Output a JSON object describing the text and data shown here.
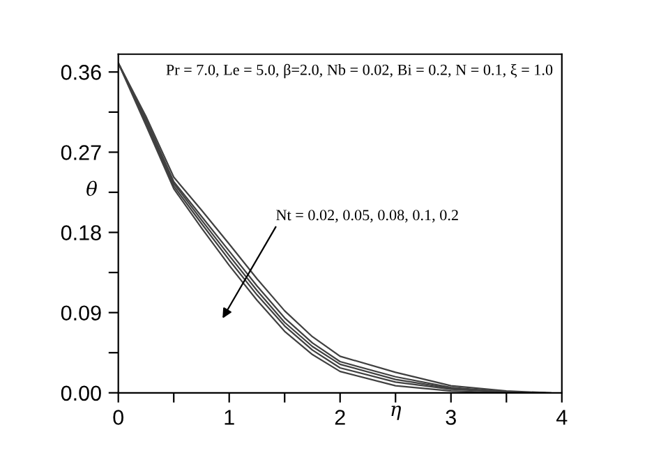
{
  "chart_data": {
    "type": "line",
    "xlabel": "η",
    "ylabel": "θ",
    "series": [
      {
        "color": "#404040",
        "x": [
          0,
          0.25,
          0.5,
          0.75,
          1,
          1.25,
          1.5,
          1.75,
          2,
          2.5,
          3,
          3.5,
          3.9
        ],
        "values": [
          0.37,
          0.31,
          0.242,
          0.205,
          0.167,
          0.128,
          0.092,
          0.063,
          0.041,
          0.023,
          0.008,
          0.002,
          0.0
        ]
      },
      {
        "color": "#404040",
        "x": [
          0,
          0.25,
          0.5,
          0.75,
          1,
          1.25,
          1.5,
          1.75,
          2,
          2.5,
          3,
          3.5,
          3.85
        ],
        "values": [
          0.37,
          0.307,
          0.237,
          0.198,
          0.159,
          0.12,
          0.084,
          0.056,
          0.035,
          0.018,
          0.006,
          0.001,
          0.0
        ]
      },
      {
        "color": "#404040",
        "x": [
          0,
          0.25,
          0.5,
          0.75,
          1,
          1.25,
          1.5,
          1.75,
          2,
          2.5,
          3,
          3.5,
          3.8
        ],
        "values": [
          0.37,
          0.305,
          0.235,
          0.194,
          0.154,
          0.115,
          0.079,
          0.052,
          0.032,
          0.015,
          0.005,
          0.001,
          0.0
        ]
      },
      {
        "color": "#404040",
        "x": [
          0,
          0.25,
          0.5,
          0.75,
          1,
          1.25,
          1.5,
          1.75,
          2,
          2.5,
          3,
          3.5,
          3.75
        ],
        "values": [
          0.37,
          0.303,
          0.232,
          0.19,
          0.149,
          0.11,
          0.075,
          0.048,
          0.028,
          0.012,
          0.004,
          0.001,
          0.0
        ]
      },
      {
        "color": "#404040",
        "x": [
          0,
          0.25,
          0.5,
          0.75,
          1,
          1.25,
          1.5,
          1.75,
          2,
          2.5,
          3,
          3.5
        ],
        "values": [
          0.37,
          0.3,
          0.229,
          0.185,
          0.143,
          0.104,
          0.069,
          0.043,
          0.024,
          0.008,
          0.002,
          0.0
        ]
      }
    ],
    "xlim": [
      0,
      4
    ],
    "ylim": [
      0,
      0.38
    ],
    "xticks": [
      0,
      {
        "value": 0.5,
        "label": null
      },
      1,
      {
        "value": 1.5,
        "label": null
      },
      2,
      {
        "value": 2.5,
        "label": null
      },
      3,
      {
        "value": 3.5,
        "label": null
      },
      4
    ],
    "yticks": [
      {
        "value": 0,
        "label": "0.00"
      },
      {
        "value": 0.045,
        "label": null
      },
      {
        "value": 0.09,
        "label": "0.09"
      },
      {
        "value": 0.135,
        "label": null
      },
      {
        "value": 0.18,
        "label": "0.18"
      },
      {
        "value": 0.225,
        "label": null
      },
      {
        "value": 0.27,
        "label": "0.27"
      },
      {
        "value": 0.315,
        "label": null
      },
      {
        "value": 0.36,
        "label": "0.36"
      }
    ],
    "grid": false,
    "legend": false,
    "marker": "none",
    "line_style": "solid",
    "annotations": [
      "Pr = 7.0, Le = 5.0, β=2.0, Nb = 0.02, Bi = 0.2, N = 0.1, ξ = 1.0",
      "Nt = 0.02, 0.05, 0.08, 0.1, 0.2"
    ]
  }
}
